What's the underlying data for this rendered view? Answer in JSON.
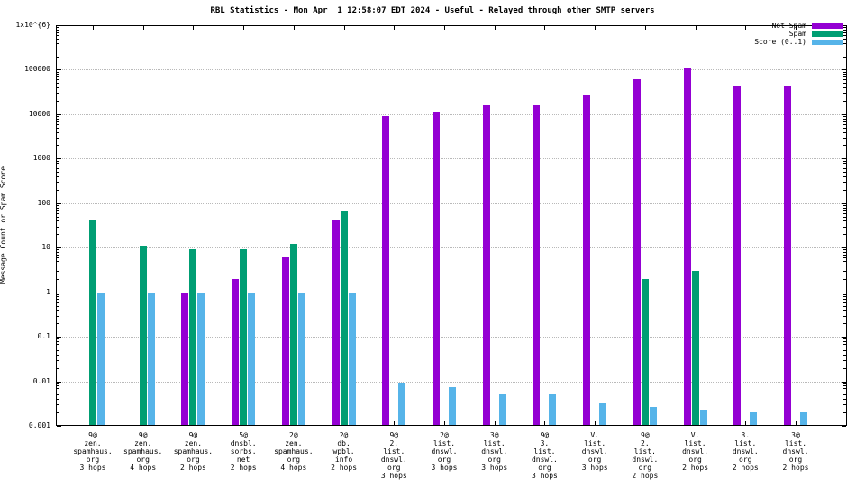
{
  "chart_data": {
    "type": "bar",
    "title": "RBL Statistics - Mon Apr  1 12:58:07 EDT 2024 - Useful - Relayed through other SMTP servers",
    "xlabel": "",
    "ylabel": "Message Count or Spam Score",
    "y_scale": "log",
    "ylim": [
      0.001,
      1000000
    ],
    "y_ticks": [
      "0.001",
      "0.01",
      "0.1",
      "1",
      "10",
      "100",
      "1000",
      "10000",
      "100000",
      "1x10^{6}"
    ],
    "grid": "horizontal-dotted",
    "legend_position": "top-right",
    "categories": [
      [
        "9@",
        "zen.",
        "spamhaus.",
        "org",
        "3 hops"
      ],
      [
        "9@",
        "zen.",
        "spamhaus.",
        "org",
        "4 hops"
      ],
      [
        "9@",
        "zen.",
        "spamhaus.",
        "org",
        "2 hops"
      ],
      [
        "5@",
        "dnsbl.",
        "sorbs.",
        "net",
        "2 hops"
      ],
      [
        "2@",
        "zen.",
        "spamhaus.",
        "org",
        "4 hops"
      ],
      [
        "2@",
        "db.",
        "wpbl.",
        "info",
        "2 hops"
      ],
      [
        "9@",
        "2.",
        "list.",
        "dnswl.",
        "org",
        "3 hops"
      ],
      [
        "2@",
        "list.",
        "dnswl.",
        "org",
        "3 hops"
      ],
      [
        "3@",
        "list.",
        "dnswl.",
        "org",
        "3 hops"
      ],
      [
        "9@",
        "3.",
        "list.",
        "dnswl.",
        "org",
        "3 hops"
      ],
      [
        "V.",
        "list.",
        "dnswl.",
        "org",
        "3 hops"
      ],
      [
        "9@",
        "2.",
        "list.",
        "dnswl.",
        "org",
        "2 hops"
      ],
      [
        "V.",
        "list.",
        "dnswl.",
        "org",
        "2 hops"
      ],
      [
        "3.",
        "list.",
        "dnswl.",
        "org",
        "2 hops"
      ],
      [
        "3@",
        "list.",
        "dnswl.",
        "org",
        "2 hops"
      ]
    ],
    "series": [
      {
        "name": "Not Spam",
        "color": "#9400d3",
        "values": [
          null,
          null,
          1,
          2,
          6,
          40,
          9000,
          11000,
          16000,
          16000,
          27000,
          62000,
          105000,
          42000,
          42000
        ]
      },
      {
        "name": "Spam",
        "color": "#009e73",
        "values": [
          40,
          11,
          9,
          9,
          12,
          65,
          null,
          null,
          null,
          null,
          null,
          2,
          3,
          null,
          null
        ]
      },
      {
        "name": "Score (0..1)",
        "color": "#56b4e9",
        "values": [
          1,
          1,
          1,
          1,
          1,
          1,
          0.0095,
          0.0075,
          0.005,
          0.005,
          0.0032,
          0.0027,
          0.0023,
          0.002,
          0.002
        ]
      }
    ]
  }
}
